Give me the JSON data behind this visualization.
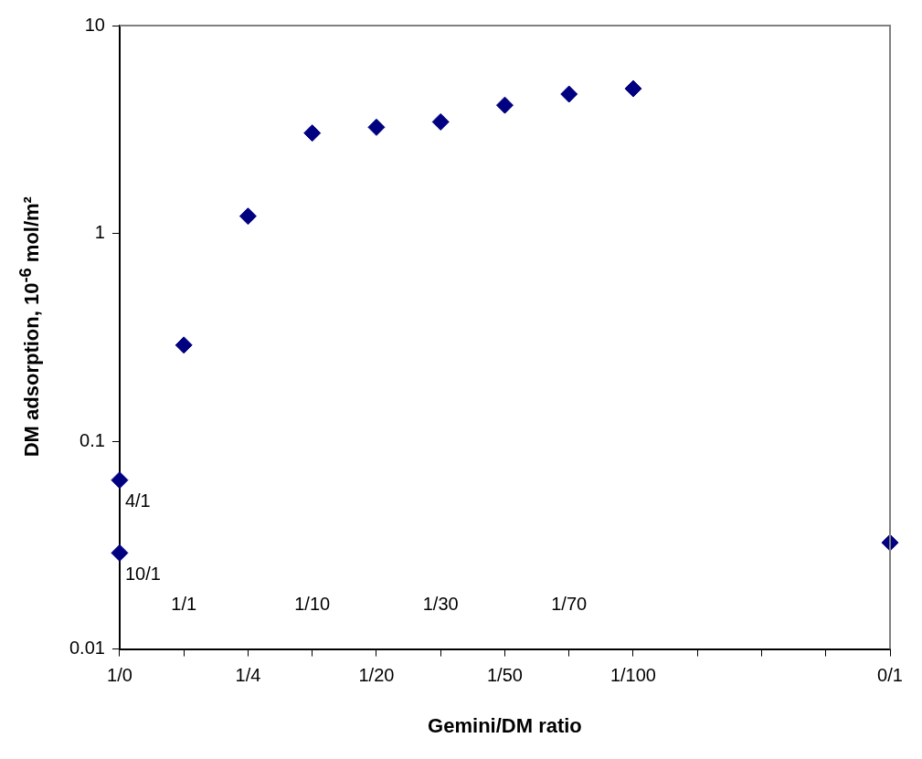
{
  "chart_data": {
    "type": "scatter",
    "xlabel": "Gemini/DM ratio",
    "ylabel": "DM adsorption, 10$^{-6}$ mol/m²",
    "categories": [
      "1/0",
      "1/1",
      "1/4",
      "1/10",
      "1/20",
      "1/30",
      "1/50",
      "1/70",
      "1/100",
      null,
      null,
      null,
      "0/1"
    ],
    "series": [
      {
        "color": "#000080",
        "x": [
          "1/0",
          "1/0",
          "1/1",
          "1/4",
          "1/10",
          "1/20",
          "1/30",
          "1/50",
          "1/70",
          "1/100",
          "0/1"
        ],
        "values": [
          0.029,
          0.065,
          0.29,
          1.21,
          3.04,
          3.24,
          3.44,
          4.14,
          4.68,
          4.97,
          0.0325
        ]
      }
    ],
    "ylim": [
      0.01,
      10
    ],
    "yticks": [
      0.01,
      0.1,
      1,
      10
    ],
    "log": "y",
    "grid": false,
    "legend": false,
    "marker": "diamond",
    "annotations": [
      {
        "text": "10/1",
        "x": "1/0",
        "y": 0.029
      },
      {
        "text": "4/1",
        "x": "1/0",
        "y": 0.065
      }
    ]
  }
}
